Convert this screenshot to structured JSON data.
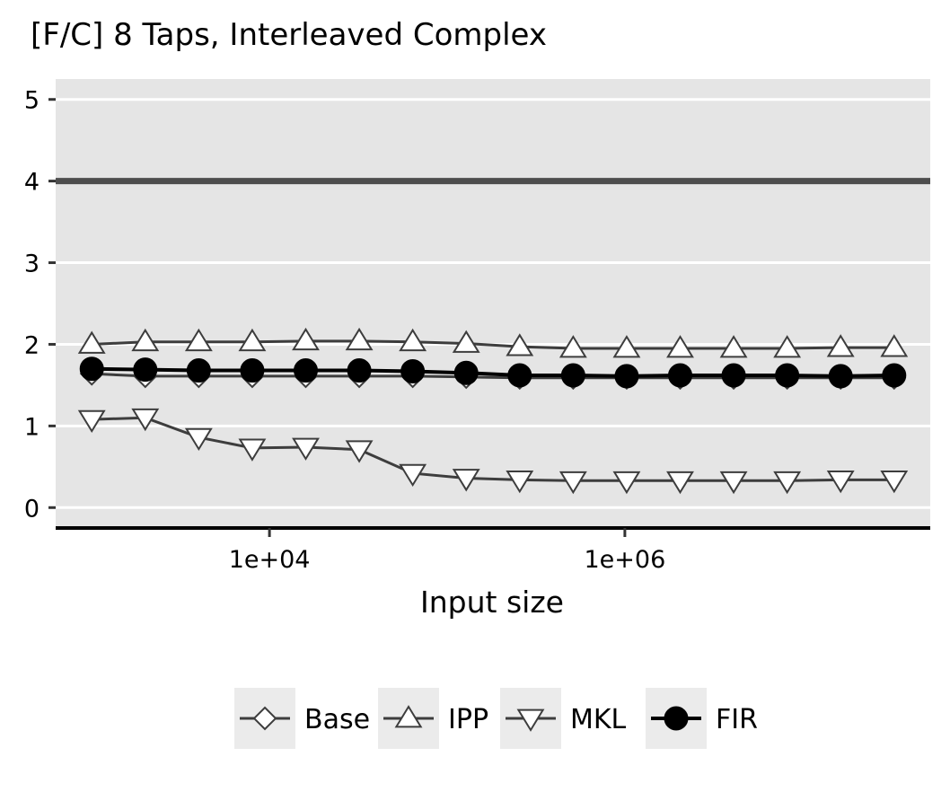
{
  "chart_data": {
    "type": "line",
    "title": "[F/C] 8 Taps, Interleaved Complex",
    "xlabel": "Input size",
    "ylabel": "",
    "x_scale": "log10",
    "x": [
      1000,
      2000,
      4000,
      8000,
      16000,
      32000,
      64000,
      128000,
      256000,
      512000,
      1024000,
      2048000,
      4096000,
      8192000,
      16384000,
      32768000
    ],
    "x_ticks": [
      10000,
      1000000
    ],
    "x_tick_labels": [
      "1e+04",
      "1e+06"
    ],
    "ylim": [
      -0.25,
      5.25
    ],
    "y_ticks": [
      0,
      1,
      2,
      3,
      4,
      5
    ],
    "y_tick_labels": [
      "0",
      "1",
      "2",
      "3",
      "4",
      "5"
    ],
    "reference_line": {
      "y": 4,
      "color": "#4d4d4d"
    },
    "panel_background": "#e5e5e5",
    "grid": true,
    "legend_position": "bottom",
    "series": [
      {
        "name": "Base",
        "marker": "diamond-open",
        "color": "#3d3d3d",
        "values": [
          1.64,
          1.61,
          1.61,
          1.61,
          1.61,
          1.61,
          1.61,
          1.6,
          1.59,
          1.59,
          1.59,
          1.59,
          1.59,
          1.59,
          1.59,
          1.59
        ]
      },
      {
        "name": "IPP",
        "marker": "triangle-up-open",
        "color": "#3d3d3d",
        "values": [
          2.0,
          2.03,
          2.03,
          2.03,
          2.04,
          2.04,
          2.03,
          2.01,
          1.97,
          1.95,
          1.95,
          1.95,
          1.95,
          1.95,
          1.96,
          1.96
        ]
      },
      {
        "name": "MKL",
        "marker": "triangle-down-open",
        "color": "#3d3d3d",
        "values": [
          1.08,
          1.1,
          0.86,
          0.73,
          0.74,
          0.71,
          0.42,
          0.36,
          0.34,
          0.33,
          0.33,
          0.33,
          0.33,
          0.33,
          0.34,
          0.34
        ]
      },
      {
        "name": "FIR",
        "marker": "circle-filled",
        "color": "#000000",
        "values": [
          1.7,
          1.69,
          1.68,
          1.68,
          1.68,
          1.68,
          1.67,
          1.65,
          1.62,
          1.62,
          1.61,
          1.62,
          1.62,
          1.62,
          1.61,
          1.62
        ]
      }
    ]
  }
}
